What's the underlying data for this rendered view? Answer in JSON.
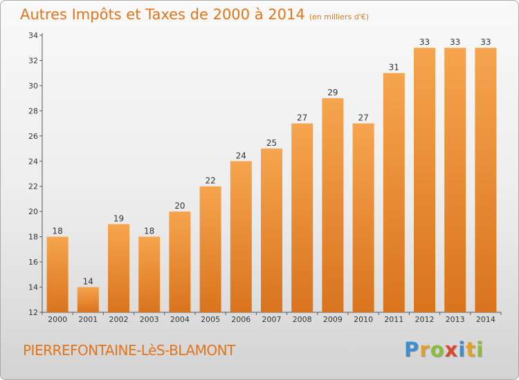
{
  "header": {
    "title": "Autres Impôts et Taxes de 2000 à 2014",
    "subtitle": "(en milliers d'€)"
  },
  "footer": {
    "town": "PIERREFONTAINE-LèS-BLAMONT",
    "logo_letters": [
      "P",
      "r",
      "o",
      "x",
      "i",
      "t",
      "i"
    ],
    "logo_colors": [
      "#3b8fd1",
      "#e0a12a",
      "#8bbd3a",
      "#d84a2e",
      "#3b8fd1",
      "#e0a12a",
      "#8bbd3a"
    ]
  },
  "colors": {
    "bar_light": "#f6a44e",
    "bar_dark": "#d9741d",
    "text_accent": "#e2741a"
  },
  "chart_data": {
    "type": "bar",
    "categories": [
      "2000",
      "2001",
      "2002",
      "2003",
      "2004",
      "2005",
      "2006",
      "2007",
      "2008",
      "2009",
      "2010",
      "2011",
      "2012",
      "2013",
      "2014"
    ],
    "values": [
      18,
      14,
      19,
      18,
      20,
      22,
      24,
      25,
      27,
      29,
      27,
      31,
      33,
      33,
      33
    ],
    "data_labels": [
      "18",
      "14",
      "19",
      "18",
      "20",
      "22",
      "24",
      "25",
      "27",
      "29",
      "27",
      "31",
      "33",
      "33",
      "33"
    ],
    "title": "Autres Impôts et Taxes de 2000 à 2014",
    "subtitle": "(en milliers d'€)",
    "xlabel": "",
    "ylabel": "",
    "ylim": [
      12,
      34
    ],
    "yticks": [
      12,
      14,
      16,
      18,
      20,
      22,
      24,
      26,
      28,
      30,
      32,
      34
    ],
    "grid": false
  }
}
